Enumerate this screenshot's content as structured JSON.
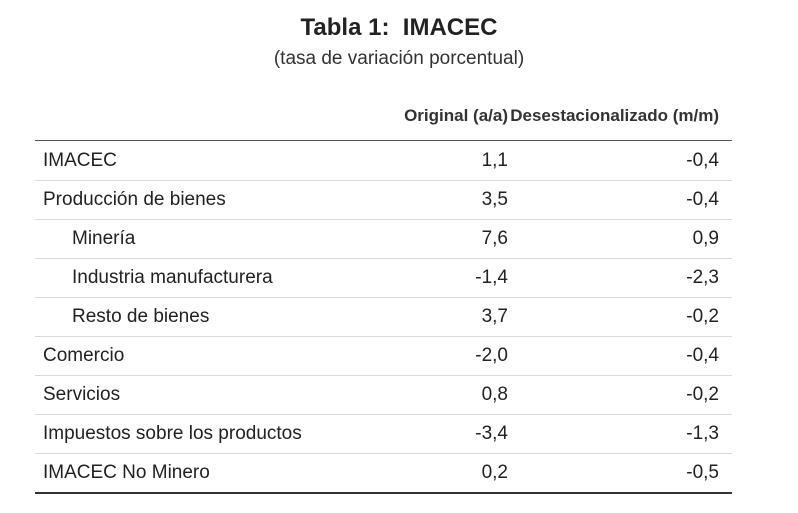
{
  "table": {
    "title": "Tabla 1:  IMACEC",
    "subtitle": "(tasa de variación porcentual)",
    "columns": {
      "label": "",
      "original": "Original (a/a)",
      "desestacionalizado": "Desestacionalizado (m/m)"
    },
    "rows": [
      {
        "label": "IMACEC",
        "original": "1,1",
        "desestacionalizado": "-0,4"
      },
      {
        "label": "Producción de bienes",
        "original": "3,5",
        "desestacionalizado": "-0,4"
      },
      {
        "label": "Minería",
        "original": "7,6",
        "desestacionalizado": "0,9"
      },
      {
        "label": "Industria manufacturera",
        "original": "-1,4",
        "desestacionalizado": "-2,3"
      },
      {
        "label": "Resto de bienes",
        "original": "3,7",
        "desestacionalizado": "-0,2"
      },
      {
        "label": "Comercio",
        "original": "-2,0",
        "desestacionalizado": "-0,4"
      },
      {
        "label": "Servicios",
        "original": "0,8",
        "desestacionalizado": "-0,2"
      },
      {
        "label": "Impuestos sobre los productos",
        "original": "-3,4",
        "desestacionalizado": "-1,3"
      },
      {
        "label": "IMACEC No Minero",
        "original": "0,2",
        "desestacionalizado": "-0,5"
      }
    ]
  }
}
